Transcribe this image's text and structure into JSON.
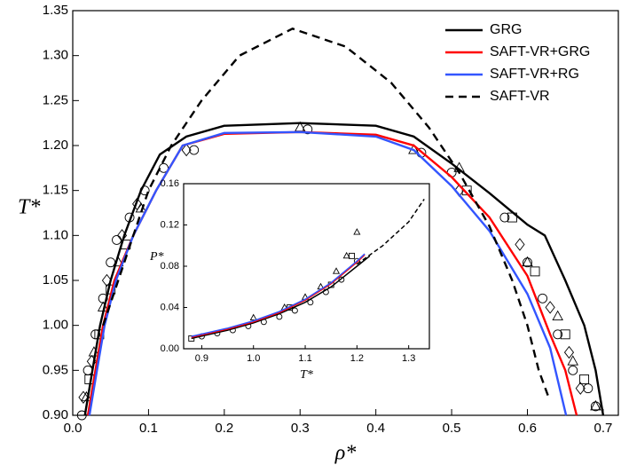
{
  "chart_data": [
    {
      "type": "line",
      "xlabel": "ρ*",
      "ylabel": "T*",
      "legend": "upper right",
      "xlim": [
        0,
        0.72
      ],
      "ylim": [
        0.9,
        1.35
      ],
      "xticks": [
        {
          "value": 0,
          "label": "0.0"
        },
        0.1,
        0.2,
        0.3,
        0.4,
        0.5,
        0.6,
        0.7
      ],
      "yticks": [
        {
          "value": 0.9,
          "label": "0.90"
        },
        0.95,
        {
          "value": 1.0,
          "label": "1.00"
        },
        1.05,
        {
          "value": 1.1,
          "label": "1.10"
        },
        1.15,
        {
          "value": 1.2,
          "label": "1.20"
        },
        1.25,
        {
          "value": 1.3,
          "label": "1.30"
        },
        1.35
      ],
      "series": [
        {
          "name": "GRG",
          "color": "#000000",
          "dash": false,
          "x": [
            0.016,
            0.026,
            0.036,
            0.05,
            0.068,
            0.09,
            0.115,
            0.15,
            0.2,
            0.3,
            0.4,
            0.45,
            0.5,
            0.55,
            0.6,
            0.623,
            0.65,
            0.675,
            0.69,
            0.7
          ],
          "values": [
            0.9,
            0.95,
            1.0,
            1.05,
            1.1,
            1.15,
            1.19,
            1.21,
            1.222,
            1.225,
            1.222,
            1.21,
            1.18,
            1.147,
            1.112,
            1.1,
            1.05,
            1.0,
            0.95,
            0.9
          ]
        },
        {
          "name": "SAFT-VR+GRG",
          "color": "#ff0000",
          "dash": false,
          "x": [
            0.02,
            0.03,
            0.04,
            0.055,
            0.08,
            0.11,
            0.145,
            0.2,
            0.3,
            0.4,
            0.45,
            0.5,
            0.55,
            0.6,
            0.63,
            0.65,
            0.665
          ],
          "values": [
            0.9,
            0.95,
            1.0,
            1.05,
            1.1,
            1.15,
            1.2,
            1.213,
            1.215,
            1.212,
            1.2,
            1.165,
            1.12,
            1.055,
            0.99,
            0.95,
            0.9
          ]
        },
        {
          "name": "SAFT-VR+RG",
          "color": "#3355ff",
          "dash": false,
          "x": [
            0.022,
            0.032,
            0.042,
            0.057,
            0.08,
            0.11,
            0.145,
            0.2,
            0.3,
            0.4,
            0.45,
            0.5,
            0.55,
            0.6,
            0.63,
            0.651
          ],
          "values": [
            0.9,
            0.95,
            1.0,
            1.05,
            1.1,
            1.15,
            1.2,
            1.214,
            1.215,
            1.21,
            1.195,
            1.155,
            1.105,
            1.035,
            0.975,
            0.9
          ]
        },
        {
          "name": "SAFT-VR",
          "color": "#000000",
          "dash": true,
          "x": [
            0.04,
            0.06,
            0.08,
            0.1,
            0.13,
            0.17,
            0.22,
            0.29,
            0.36,
            0.42,
            0.47,
            0.51,
            0.55,
            0.58,
            0.6,
            0.615,
            0.628
          ],
          "values": [
            1.0,
            1.05,
            1.1,
            1.15,
            1.2,
            1.25,
            1.3,
            1.33,
            1.31,
            1.27,
            1.22,
            1.17,
            1.11,
            1.05,
            1.0,
            0.95,
            0.92
          ]
        }
      ],
      "points": [
        {
          "marker": "circle",
          "x": [
            0.012,
            0.02,
            0.03,
            0.04,
            0.05,
            0.058,
            0.075,
            0.095,
            0.12,
            0.16,
            0.31,
            0.46,
            0.5,
            0.57,
            0.6,
            0.62,
            0.64,
            0.66,
            0.68,
            0.69
          ],
          "values": [
            0.9,
            0.95,
            0.99,
            1.03,
            1.07,
            1.095,
            1.12,
            1.15,
            1.175,
            1.195,
            1.218,
            1.192,
            1.17,
            1.12,
            1.07,
            1.03,
            0.99,
            0.95,
            0.93,
            0.91
          ]
        },
        {
          "marker": "triangle",
          "x": [
            0.018,
            0.028,
            0.04,
            0.06,
            0.09,
            0.3,
            0.45,
            0.51,
            0.6,
            0.64,
            0.66,
            0.69
          ],
          "values": [
            0.92,
            0.97,
            1.02,
            1.07,
            1.13,
            1.22,
            1.195,
            1.175,
            1.07,
            1.01,
            0.96,
            0.91
          ]
        },
        {
          "marker": "square",
          "x": [
            0.022,
            0.035,
            0.05,
            0.07,
            0.52,
            0.58,
            0.61,
            0.65,
            0.675
          ],
          "values": [
            0.94,
            0.99,
            1.04,
            1.09,
            1.15,
            1.12,
            1.06,
            0.99,
            0.94
          ]
        },
        {
          "marker": "diamond",
          "x": [
            0.014,
            0.025,
            0.045,
            0.065,
            0.085,
            0.15,
            0.51,
            0.59,
            0.63,
            0.655,
            0.67
          ],
          "values": [
            0.92,
            0.96,
            1.05,
            1.1,
            1.135,
            1.195,
            1.15,
            1.09,
            1.02,
            0.97,
            0.93
          ]
        }
      ]
    },
    {
      "type": "line",
      "xlabel": "T*",
      "ylabel": "P*",
      "xlim": [
        0.865,
        1.34
      ],
      "ylim": [
        0,
        0.16
      ],
      "xticks": [
        0.9,
        {
          "value": 1.0,
          "label": "1.0"
        },
        1.1,
        1.2,
        1.3
      ],
      "yticks": [
        {
          "value": 0,
          "label": "0.00"
        },
        0.04,
        0.08,
        0.12,
        0.16
      ],
      "series": [
        {
          "color": "#000000",
          "dash": false,
          "x": [
            0.88,
            0.95,
            1.0,
            1.05,
            1.1,
            1.15,
            1.2,
            1.225
          ],
          "values": [
            0.01,
            0.018,
            0.025,
            0.034,
            0.045,
            0.06,
            0.08,
            0.09
          ]
        },
        {
          "color": "#ff0000",
          "dash": false,
          "x": [
            0.88,
            0.95,
            1.0,
            1.05,
            1.1,
            1.15,
            1.2,
            1.215
          ],
          "values": [
            0.011,
            0.019,
            0.026,
            0.035,
            0.047,
            0.063,
            0.084,
            0.091
          ]
        },
        {
          "color": "#3355ff",
          "dash": false,
          "x": [
            0.88,
            0.95,
            1.0,
            1.05,
            1.1,
            1.15,
            1.2,
            1.215
          ],
          "values": [
            0.012,
            0.02,
            0.027,
            0.036,
            0.048,
            0.064,
            0.085,
            0.092
          ]
        },
        {
          "color": "#000000",
          "dash": true,
          "x": [
            1.2,
            1.25,
            1.3,
            1.33
          ],
          "values": [
            0.082,
            0.1,
            0.123,
            0.145
          ]
        }
      ],
      "points": [
        {
          "marker": "circle",
          "x": [
            0.9,
            0.93,
            0.96,
            0.99,
            1.02,
            1.05,
            1.08,
            1.11,
            1.14,
            1.17,
            1.2
          ],
          "values": [
            0.012,
            0.015,
            0.018,
            0.022,
            0.026,
            0.031,
            0.037,
            0.045,
            0.055,
            0.067,
            0.085
          ]
        },
        {
          "marker": "triangle",
          "x": [
            1.0,
            1.06,
            1.1,
            1.13,
            1.16,
            1.18,
            1.2
          ],
          "values": [
            0.03,
            0.04,
            0.05,
            0.06,
            0.075,
            0.09,
            0.113
          ]
        },
        {
          "marker": "square",
          "x": [
            0.88,
            1.07,
            1.15,
            1.19
          ],
          "values": [
            0.01,
            0.04,
            0.062,
            0.09
          ]
        }
      ]
    }
  ]
}
